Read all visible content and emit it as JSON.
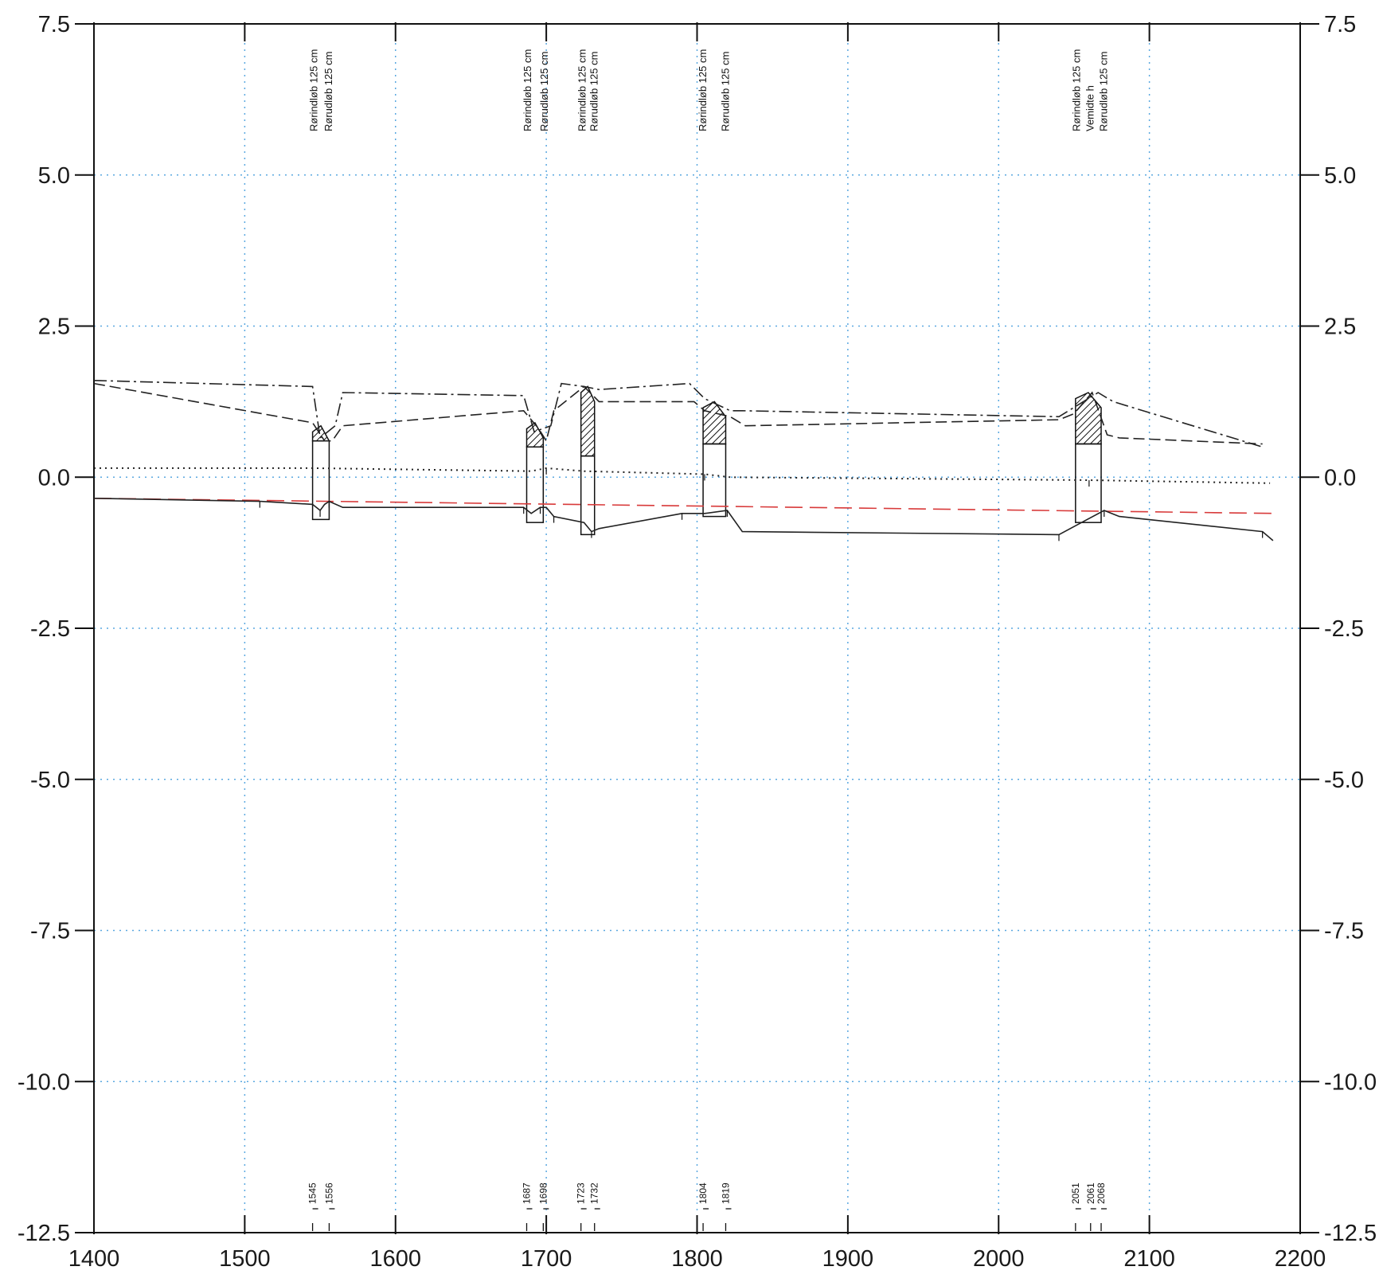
{
  "chart_data": {
    "type": "line",
    "title": "",
    "xlabel": "",
    "ylabel": "",
    "xlim": [
      1400,
      2200
    ],
    "ylim": [
      -12.5,
      7.5
    ],
    "x_ticks": [
      1400,
      1500,
      1600,
      1700,
      1800,
      1900,
      2000,
      2100,
      2200
    ],
    "x_tick_labels": [
      "1400",
      "1500",
      "1600",
      "1700",
      "1800",
      "1900",
      "2000",
      "2100",
      "2200"
    ],
    "y_ticks": [
      7.5,
      5.0,
      2.5,
      0.0,
      -2.5,
      -5.0,
      -7.5,
      -10.0,
      -12.5
    ],
    "y_tick_labels": [
      "7.5",
      "5.0",
      "2.5",
      "0.0",
      "-2.5",
      "-5.0",
      "-7.5",
      "-10.0",
      "-12.5"
    ],
    "grid": true,
    "series": [
      {
        "style": "dash-dot",
        "color": "#222222",
        "x": [
          1400,
          1545,
          1550,
          1560,
          1565,
          1685,
          1692,
          1703,
          1710,
          1725,
          1735,
          1795,
          1805,
          1822,
          1830,
          2040,
          2066,
          2076,
          2175
        ],
        "y": [
          1.6,
          1.5,
          0.65,
          0.85,
          1.4,
          1.35,
          0.75,
          0.85,
          1.55,
          1.5,
          1.45,
          1.55,
          1.3,
          1.1,
          1.1,
          1.0,
          1.4,
          1.25,
          0.5
        ]
      },
      {
        "style": "dashed",
        "color": "#222222",
        "x": [
          1400,
          1545,
          1553,
          1558,
          1565,
          1685,
          1695,
          1700,
          1705,
          1725,
          1735,
          1798,
          1805,
          1822,
          1832,
          2040,
          2050,
          2062,
          2072,
          2080,
          2175
        ],
        "y": [
          1.55,
          0.9,
          0.6,
          0.6,
          0.85,
          1.1,
          0.8,
          0.6,
          1.1,
          1.5,
          1.25,
          1.25,
          1.1,
          1.0,
          0.85,
          0.95,
          1.05,
          1.4,
          0.7,
          0.65,
          0.55
        ]
      },
      {
        "style": "dotted",
        "color": "#222222",
        "x": [
          1400,
          1545,
          1690,
          1700,
          1725,
          1805,
          1822,
          2060,
          2180
        ],
        "y": [
          0.15,
          0.15,
          0.1,
          0.15,
          0.1,
          0.05,
          0.0,
          -0.05,
          -0.1
        ]
      },
      {
        "style": "dashed-red",
        "color": "#d83a3a",
        "x": [
          1400,
          2185
        ],
        "y": [
          -0.35,
          -0.6
        ]
      },
      {
        "style": "solid",
        "color": "#222222",
        "x": [
          1400,
          1510,
          1545,
          1550,
          1553,
          1556,
          1565,
          1685,
          1690,
          1696,
          1700,
          1705,
          1725,
          1730,
          1735,
          1790,
          1805,
          1820,
          1830,
          2040,
          2055,
          2070,
          2080,
          2175,
          2182
        ],
        "y": [
          -0.35,
          -0.4,
          -0.45,
          -0.55,
          -0.45,
          -0.4,
          -0.5,
          -0.5,
          -0.6,
          -0.5,
          -0.5,
          -0.65,
          -0.75,
          -0.9,
          -0.85,
          -0.6,
          -0.6,
          -0.55,
          -0.9,
          -0.95,
          -0.75,
          -0.55,
          -0.65,
          -0.9,
          -1.05
        ]
      }
    ],
    "structures": [
      {
        "x_left": 1545,
        "x_right": 1556,
        "top": 0.6,
        "bottom": -0.7,
        "hatch_top": 0.85
      },
      {
        "x_left": 1687,
        "x_right": 1698,
        "top": 0.5,
        "bottom": -0.75,
        "hatch_top": 0.9
      },
      {
        "x_left": 1723,
        "x_right": 1732,
        "top": 0.35,
        "bottom": -0.95,
        "hatch_top": 1.5
      },
      {
        "x_left": 1804,
        "x_right": 1819,
        "top": 0.55,
        "bottom": -0.65,
        "hatch_top": 1.25
      },
      {
        "x_left": 2051,
        "x_right": 2068,
        "top": 0.55,
        "bottom": -0.75,
        "hatch_top": 1.4
      }
    ],
    "annotations": [
      {
        "x": 1548,
        "text": "Rørindløb 125 cm"
      },
      {
        "x": 1558,
        "text": "Rørudløb 125 cm"
      },
      {
        "x": 1690,
        "text": "Rørindløb 125 cm"
      },
      {
        "x": 1701,
        "text": "Rørudløb 125 cm"
      },
      {
        "x": 1726,
        "text": "Rørindløb 125 cm"
      },
      {
        "x": 1734,
        "text": "Rørudløb 125 cm"
      },
      {
        "x": 1806,
        "text": "Rørindløb 125 cm"
      },
      {
        "x": 1821,
        "text": "Rørudløb 125 cm"
      },
      {
        "x": 2054,
        "text": "Rørindløb 125 cm"
      },
      {
        "x": 2063,
        "text": "Vemidte h"
      },
      {
        "x": 2072,
        "text": "Rørudløb 125 cm"
      }
    ],
    "stations": [
      {
        "x": 1545,
        "label": "1545"
      },
      {
        "x": 1556,
        "label": "1556"
      },
      {
        "x": 1687,
        "label": "1687"
      },
      {
        "x": 1698,
        "label": "1698"
      },
      {
        "x": 1723,
        "label": "1723"
      },
      {
        "x": 1732,
        "label": "1732"
      },
      {
        "x": 1804,
        "label": "1804"
      },
      {
        "x": 1819,
        "label": "1819"
      },
      {
        "x": 2051,
        "label": "2051"
      },
      {
        "x": 2061,
        "label": "2061"
      },
      {
        "x": 2068,
        "label": "2068"
      }
    ]
  }
}
